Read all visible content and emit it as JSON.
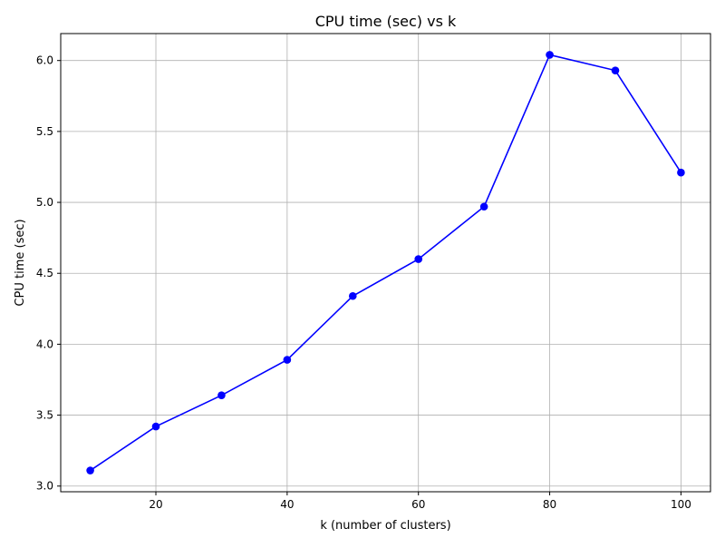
{
  "chart_data": {
    "type": "line",
    "title": "CPU time (sec) vs k",
    "xlabel": "k (number of clusters)",
    "ylabel": "CPU time (sec)",
    "x": [
      10,
      20,
      30,
      40,
      50,
      60,
      70,
      80,
      90,
      100
    ],
    "series": [
      {
        "values": [
          3.11,
          3.42,
          3.64,
          3.89,
          4.34,
          4.6,
          4.97,
          6.04,
          5.93,
          5.21
        ],
        "color": "#0000ff",
        "marker": "circle"
      }
    ],
    "xlim": [
      5.5,
      104.5
    ],
    "ylim": [
      2.96,
      6.19
    ],
    "xticks": [
      20,
      40,
      60,
      80,
      100
    ],
    "xtick_labels": [
      "20",
      "40",
      "60",
      "80",
      "100"
    ],
    "yticks": [
      3.0,
      3.5,
      4.0,
      4.5,
      5.0,
      5.5,
      6.0
    ],
    "ytick_labels": [
      "3.0",
      "3.5",
      "4.0",
      "4.5",
      "5.0",
      "5.5",
      "6.0"
    ],
    "grid": true
  }
}
